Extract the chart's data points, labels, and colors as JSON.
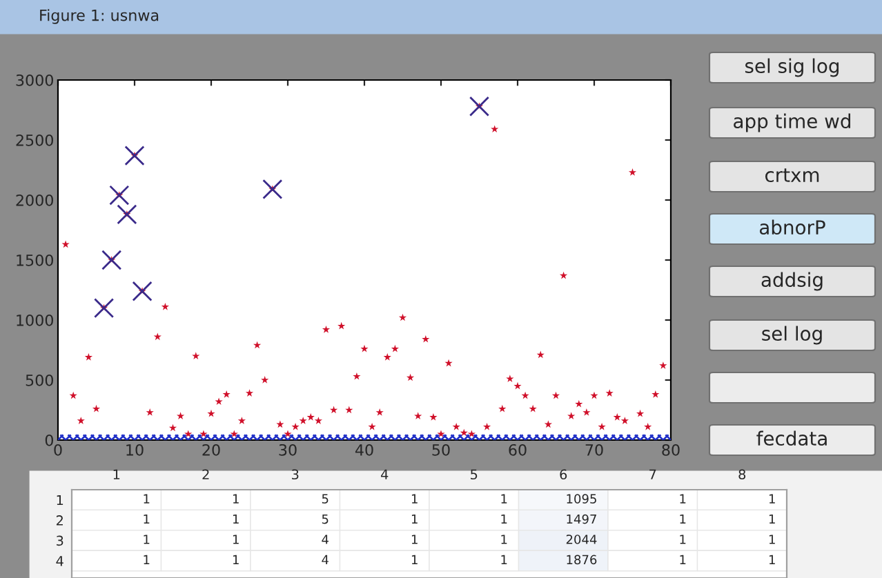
{
  "chart_data": [
    {
      "type": "scatter",
      "title": "Figure 1: usnwa",
      "xlim": [
        0,
        80
      ],
      "ylim": [
        0,
        3000
      ],
      "xticks": [
        0,
        10,
        20,
        30,
        40,
        50,
        60,
        70,
        80
      ],
      "yticks": [
        0,
        500,
        1000,
        1500,
        2000,
        2500,
        3000
      ],
      "grid": false,
      "legend": false,
      "series": [
        {
          "color": "#d0102a",
          "marker": "star",
          "x": [
            1,
            2,
            3,
            4,
            5,
            6,
            7,
            8,
            9,
            10,
            11,
            12,
            13,
            14,
            15,
            16,
            17,
            18,
            19,
            20,
            21,
            22,
            23,
            24,
            25,
            26,
            27,
            28,
            29,
            30,
            31,
            32,
            33,
            34,
            35,
            36,
            37,
            38,
            39,
            40,
            41,
            42,
            43,
            44,
            45,
            46,
            47,
            48,
            49,
            50,
            51,
            52,
            53,
            54,
            55,
            56,
            57,
            58,
            59,
            60,
            61,
            62,
            63,
            64,
            65,
            66,
            67,
            68,
            69,
            70,
            71,
            72,
            73,
            74,
            75,
            76,
            77,
            78,
            79
          ],
          "values": [
            1630,
            370,
            160,
            690,
            260,
            1100,
            1500,
            2040,
            1880,
            2370,
            1240,
            230,
            860,
            1110,
            100,
            200,
            50,
            700,
            50,
            220,
            320,
            380,
            50,
            160,
            390,
            790,
            500,
            2090,
            130,
            50,
            110,
            160,
            190,
            160,
            920,
            250,
            950,
            250,
            530,
            760,
            110,
            230,
            690,
            760,
            1020,
            520,
            200,
            840,
            190,
            50,
            640,
            110,
            60,
            50,
            2780,
            110,
            2590,
            260,
            510,
            450,
            370,
            260,
            710,
            130,
            370,
            1370,
            200,
            300,
            230,
            370,
            110,
            390,
            190,
            160,
            2230,
            220,
            110,
            380,
            620
          ]
        },
        {
          "color": "#3a2a8a",
          "marker": "cross",
          "x": [
            6,
            7,
            8,
            9,
            10,
            28,
            55,
            11
          ],
          "values": [
            1100,
            1500,
            2040,
            1880,
            2370,
            2090,
            2780,
            1240
          ]
        },
        {
          "color": "#2030c8",
          "marker": "cross",
          "x": [
            0,
            1,
            2,
            3,
            4,
            5,
            6,
            7,
            8,
            9,
            10,
            11,
            12,
            13,
            14,
            15,
            16,
            17,
            18,
            19,
            20,
            21,
            22,
            23,
            24,
            25,
            26,
            27,
            28,
            29,
            30,
            31,
            32,
            33,
            34,
            35,
            36,
            37,
            38,
            39,
            40,
            41,
            42,
            43,
            44,
            45,
            46,
            47,
            48,
            49,
            50,
            51,
            52,
            53,
            54,
            55,
            56,
            57,
            58,
            59,
            60,
            61,
            62,
            63,
            64,
            65,
            66,
            67,
            68,
            69,
            70,
            71,
            72,
            73,
            74,
            75,
            76,
            77,
            78,
            79,
            80
          ],
          "values": [
            0,
            0,
            0,
            0,
            0,
            0,
            0,
            0,
            0,
            0,
            0,
            0,
            0,
            0,
            0,
            0,
            0,
            0,
            0,
            0,
            0,
            0,
            0,
            0,
            0,
            0,
            0,
            0,
            0,
            0,
            0,
            0,
            0,
            0,
            0,
            0,
            0,
            0,
            0,
            0,
            0,
            0,
            0,
            0,
            0,
            0,
            0,
            0,
            0,
            0,
            0,
            0,
            0,
            0,
            0,
            0,
            0,
            0,
            0,
            0,
            0,
            0,
            0,
            0,
            0,
            0,
            0,
            0,
            0,
            0,
            0,
            0,
            0,
            0,
            0,
            0,
            0,
            0,
            0,
            0,
            0
          ]
        }
      ]
    },
    {
      "type": "other",
      "annotations": [
        "sel sig log",
        "app time wd",
        "crtxm",
        "abnorP",
        "addsig",
        "sel log",
        null,
        "fecdata"
      ]
    },
    {
      "type": "heatmap",
      "categories": [
        "1",
        "2",
        "3",
        "4",
        "5",
        "6",
        "7",
        "8"
      ],
      "y_categories": [
        "1",
        "2",
        "3",
        "4"
      ],
      "cells": [
        [
          1,
          1,
          5,
          1,
          1,
          1095,
          1,
          1
        ],
        [
          1,
          1,
          5,
          1,
          1,
          1497,
          1,
          1
        ],
        [
          1,
          1,
          4,
          1,
          1,
          2044,
          1,
          1
        ],
        [
          1,
          1,
          4,
          1,
          1,
          1876,
          1,
          1
        ]
      ],
      "cell_labels": [
        [
          "1",
          "1",
          "5",
          "1",
          "1",
          "1095",
          "1",
          "1"
        ],
        [
          "1",
          "1",
          "5",
          "1",
          "1",
          "1497",
          "1",
          "1"
        ],
        [
          "1",
          "1",
          "4",
          "1",
          "1",
          "2044",
          "1",
          "1"
        ],
        [
          "1",
          "1",
          "4",
          "1",
          "1",
          "1876",
          "1",
          "1"
        ]
      ]
    }
  ]
}
